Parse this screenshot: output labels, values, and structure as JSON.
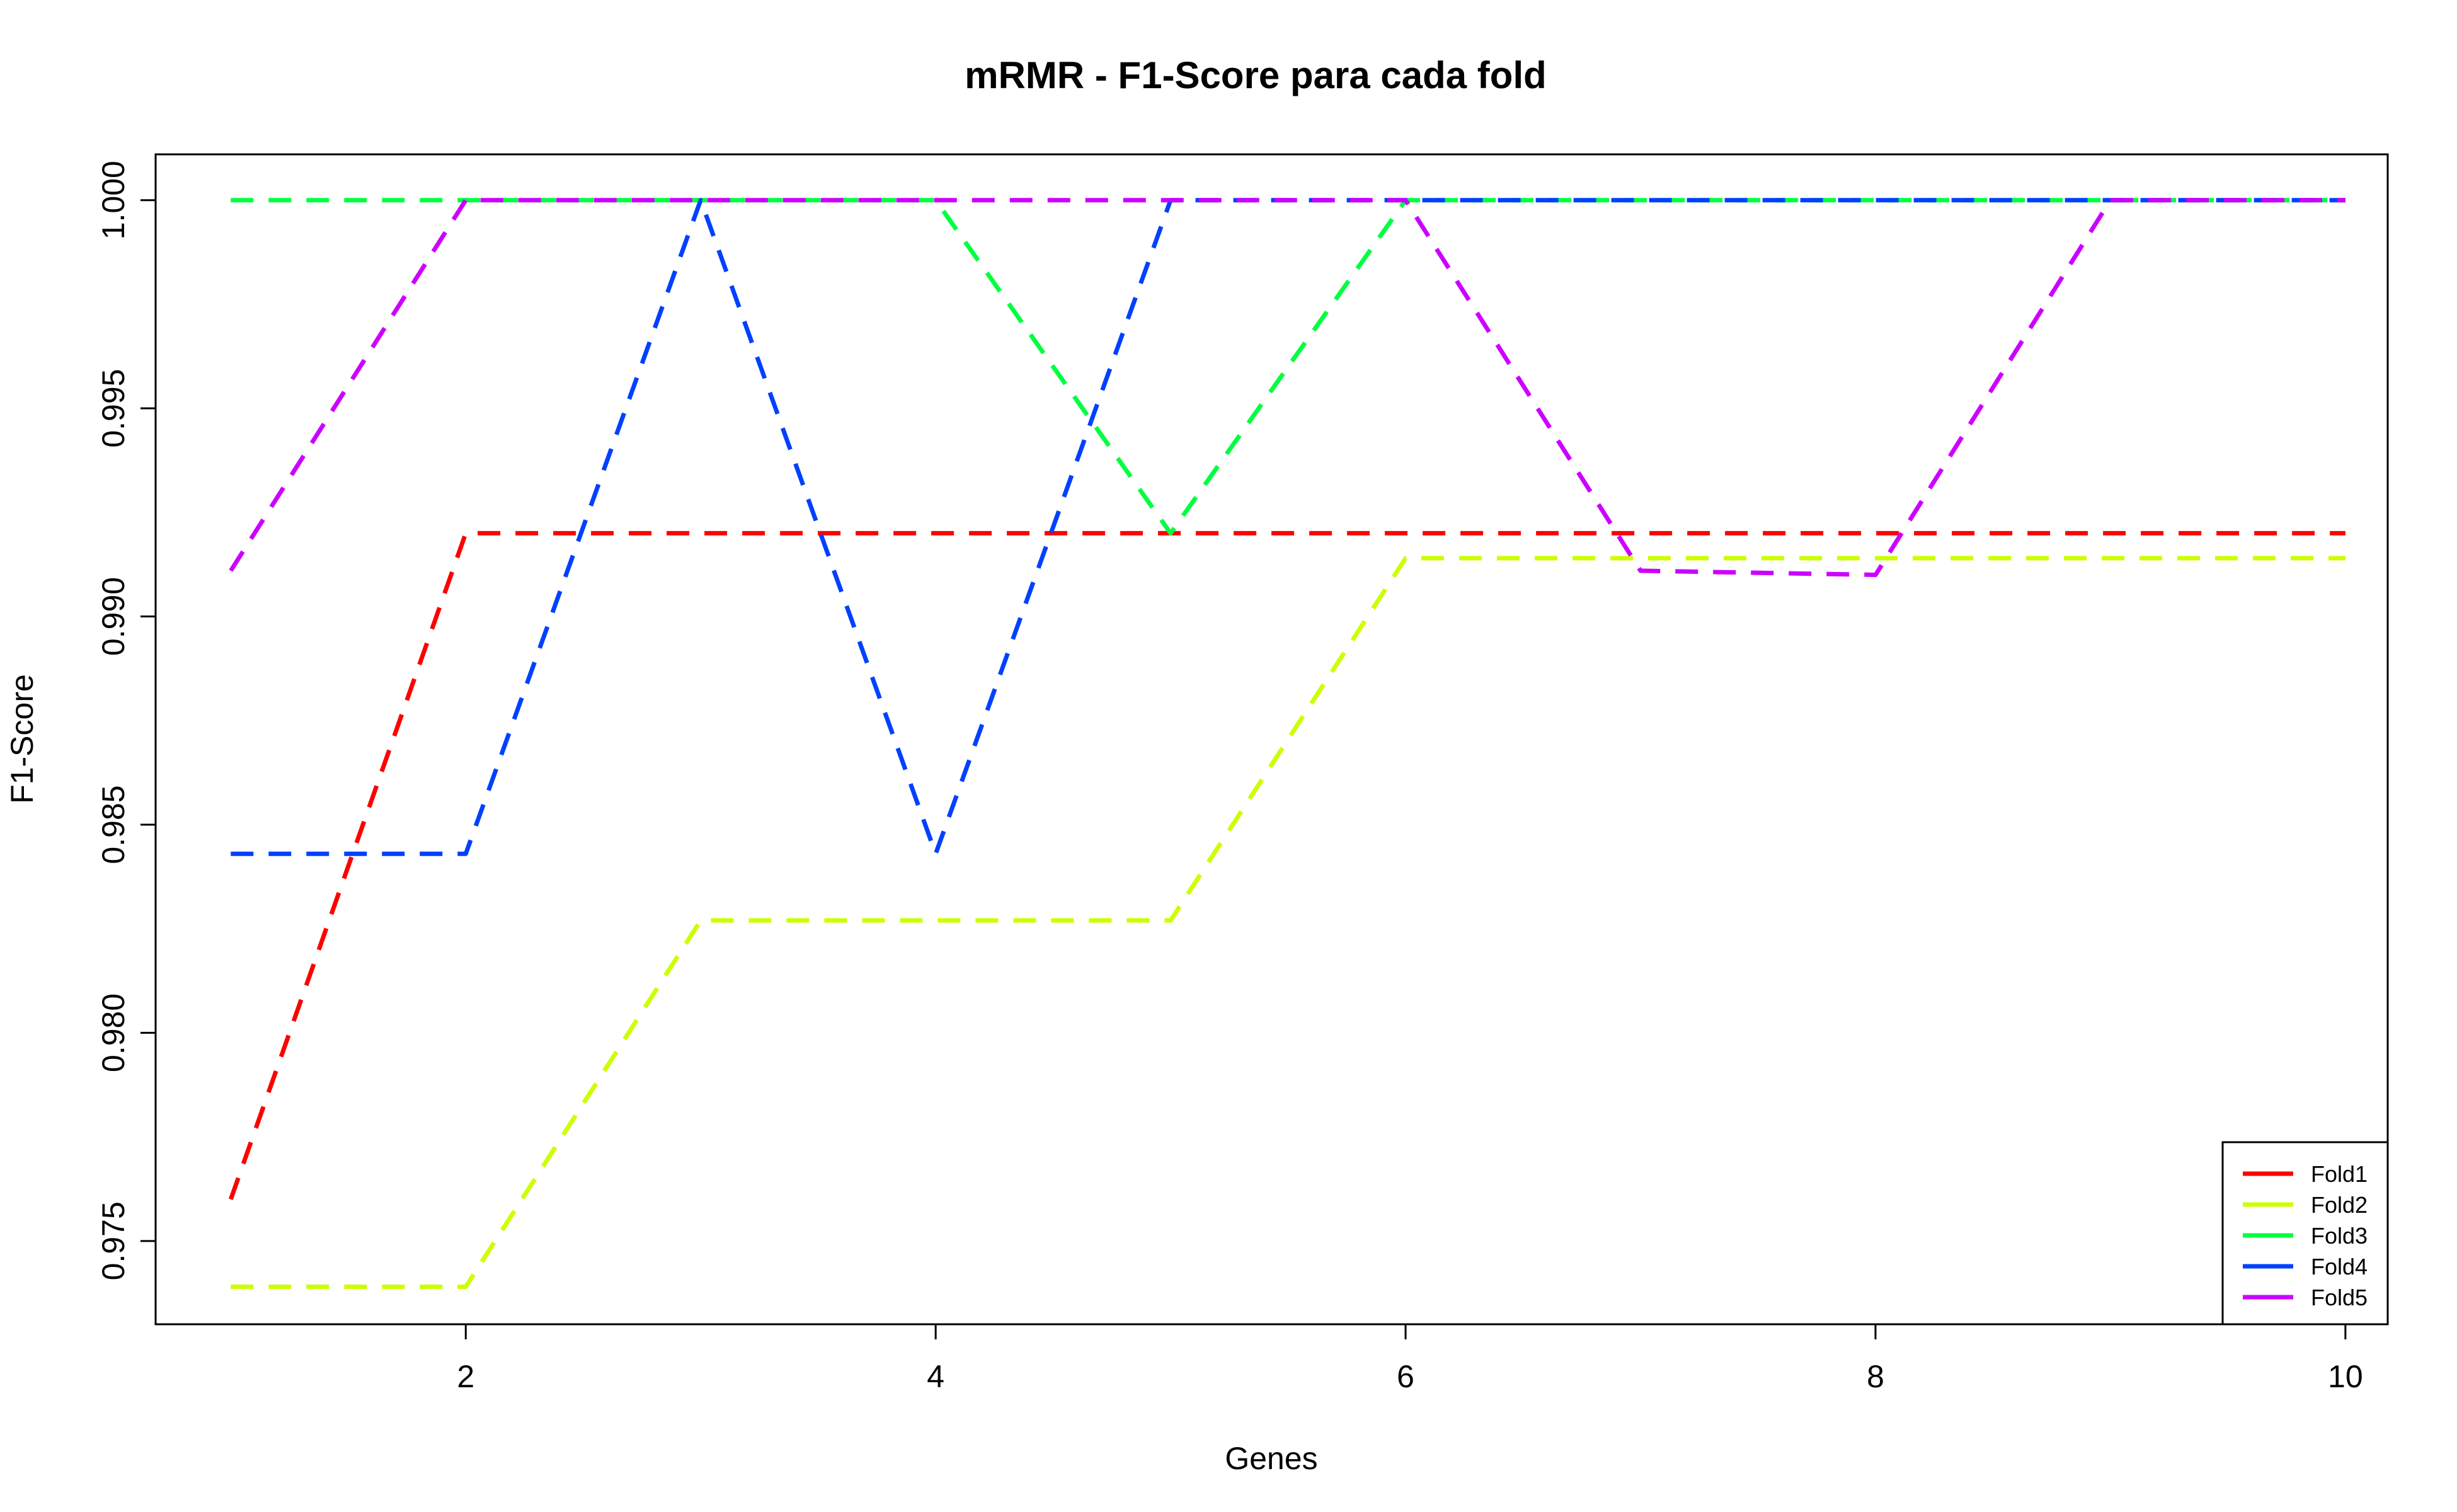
{
  "chart_data": {
    "type": "line",
    "title": "mRMR - F1-Score para cada fold",
    "xlabel": "Genes",
    "ylabel": "F1-Score",
    "x": [
      1,
      2,
      3,
      4,
      5,
      6,
      7,
      8,
      9,
      10
    ],
    "xlim": [
      0.68,
      10.18
    ],
    "ylim": [
      0.973,
      1.0011
    ],
    "xticks": [
      2,
      4,
      6,
      8,
      10
    ],
    "xtick_labels": [
      "2",
      "4",
      "6",
      "8",
      "10"
    ],
    "yticks": [
      0.975,
      0.98,
      0.985,
      0.99,
      0.995,
      1.0
    ],
    "ytick_labels": [
      "0.975",
      "0.980",
      "0.985",
      "0.990",
      "0.995",
      "1.000"
    ],
    "grid": false,
    "legend_position": "bottom-right",
    "series": [
      {
        "name": "Fold1",
        "color": "#FF0000",
        "values": [
          0.976,
          0.992,
          0.992,
          0.992,
          0.992,
          0.992,
          0.992,
          0.992,
          0.992,
          0.992
        ]
      },
      {
        "name": "Fold2",
        "color": "#CCFF00",
        "values": [
          0.9739,
          0.9739,
          0.9827,
          0.9827,
          0.9827,
          0.9914,
          0.9914,
          0.9914,
          0.9914,
          0.9914
        ]
      },
      {
        "name": "Fold3",
        "color": "#00FF40",
        "values": [
          1.0,
          1.0,
          1.0,
          1.0,
          0.992,
          1.0,
          1.0,
          1.0,
          1.0,
          1.0
        ]
      },
      {
        "name": "Fold4",
        "color": "#0040FF",
        "values": [
          0.9843,
          0.9843,
          1.0,
          0.9843,
          1.0,
          1.0,
          1.0,
          1.0,
          1.0,
          1.0
        ]
      },
      {
        "name": "Fold5",
        "color": "#CC00FF",
        "values": [
          0.9911,
          1.0,
          1.0,
          1.0,
          1.0,
          1.0,
          0.9911,
          0.991,
          1.0,
          1.0
        ]
      }
    ]
  }
}
